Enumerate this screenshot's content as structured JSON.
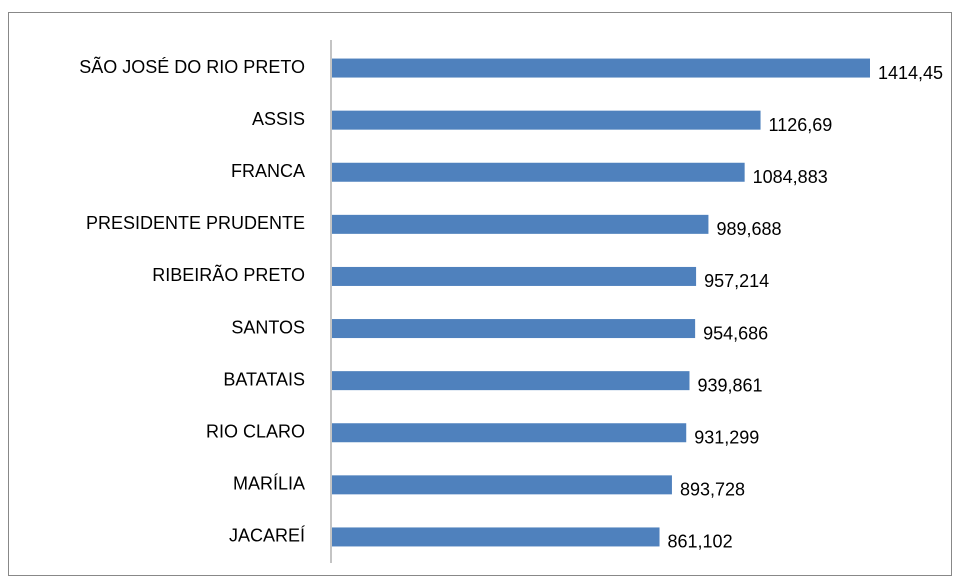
{
  "chart_data": {
    "type": "hbar",
    "categories": [
      "SÃO JOSÉ DO RIO PRETO",
      "ASSIS",
      "FRANCA",
      "PRESIDENTE PRUDENTE",
      "RIBEIRÃO PRETO",
      "SANTOS",
      "BATATAIS",
      "RIO CLARO",
      "MARÍLIA",
      "JACAREÍ"
    ],
    "values": [
      1414.45,
      1126.69,
      1084.883,
      989.688,
      957.214,
      954.686,
      939.861,
      931.299,
      893.728,
      861.102
    ],
    "value_labels": [
      "1414,45",
      "1126,69",
      "1084,883",
      "989,688",
      "957,214",
      "954,686",
      "939,861",
      "931,299",
      "893,728",
      "861,102"
    ],
    "color": "#4f81bd",
    "xlim": [
      0,
      1414.45
    ]
  }
}
